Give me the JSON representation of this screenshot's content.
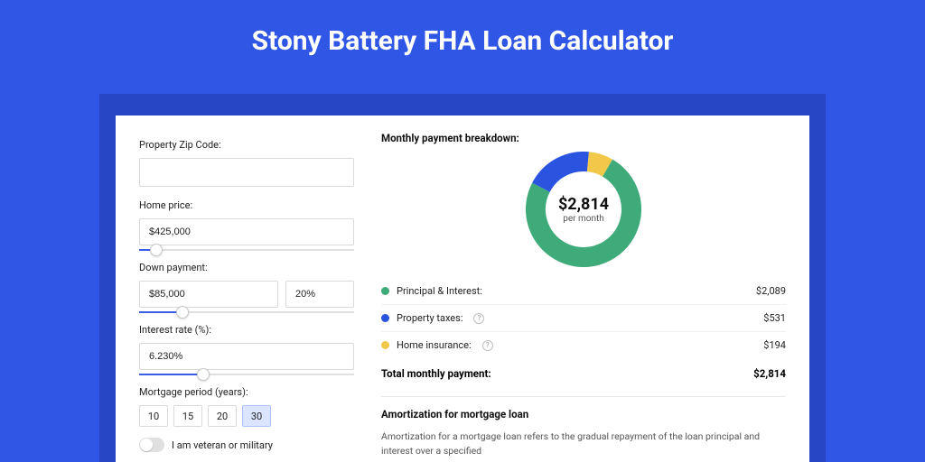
{
  "theme": {
    "page_bg": "#3056e6",
    "inner_frame_bg": "#2646c5",
    "card_bg": "#ffffff",
    "input_border": "#d9d9d9",
    "slider_track": "#e0e0e0",
    "slider_fill": "#3b5de6",
    "period_active_bg": "#dbe5ff",
    "period_active_border": "#adc2ff"
  },
  "title": "Stony Battery FHA Loan Calculator",
  "form": {
    "zip": {
      "label": "Property Zip Code:",
      "value": ""
    },
    "home_price": {
      "label": "Home price:",
      "value": "$425,000",
      "slider_percent": 8
    },
    "down_payment": {
      "label": "Down payment:",
      "value": "$85,000",
      "percent": "20%",
      "slider_percent": 20
    },
    "interest_rate": {
      "label": "Interest rate (%):",
      "value": "6.230%",
      "slider_percent": 30
    },
    "period": {
      "label": "Mortgage period (years):",
      "options": [
        "10",
        "15",
        "20",
        "30"
      ],
      "active_index": 3
    },
    "veteran": {
      "label": "I am veteran or military",
      "on": false
    }
  },
  "breakdown": {
    "title": "Monthly payment breakdown:",
    "donut": {
      "total_label": "$2,814",
      "sub_label": "per month",
      "segments": [
        {
          "name": "principal_interest",
          "color": "#3fab7a",
          "degrees": 267
        },
        {
          "name": "property_taxes",
          "color": "#2a53e0",
          "degrees": 68
        },
        {
          "name": "home_insurance",
          "color": "#f2c84b",
          "degrees": 25
        }
      ],
      "size": 128,
      "thickness": 22
    },
    "rows": [
      {
        "dot": "#3fab7a",
        "label": "Principal & Interest:",
        "help": false,
        "value": "$2,089"
      },
      {
        "dot": "#2a53e0",
        "label": "Property taxes:",
        "help": true,
        "value": "$531"
      },
      {
        "dot": "#f2c84b",
        "label": "Home insurance:",
        "help": true,
        "value": "$194"
      }
    ],
    "total": {
      "label": "Total monthly payment:",
      "value": "$2,814"
    }
  },
  "amortization": {
    "title": "Amortization for mortgage loan",
    "text": "Amortization for a mortgage loan refers to the gradual repayment of the loan principal and interest over a specified"
  }
}
